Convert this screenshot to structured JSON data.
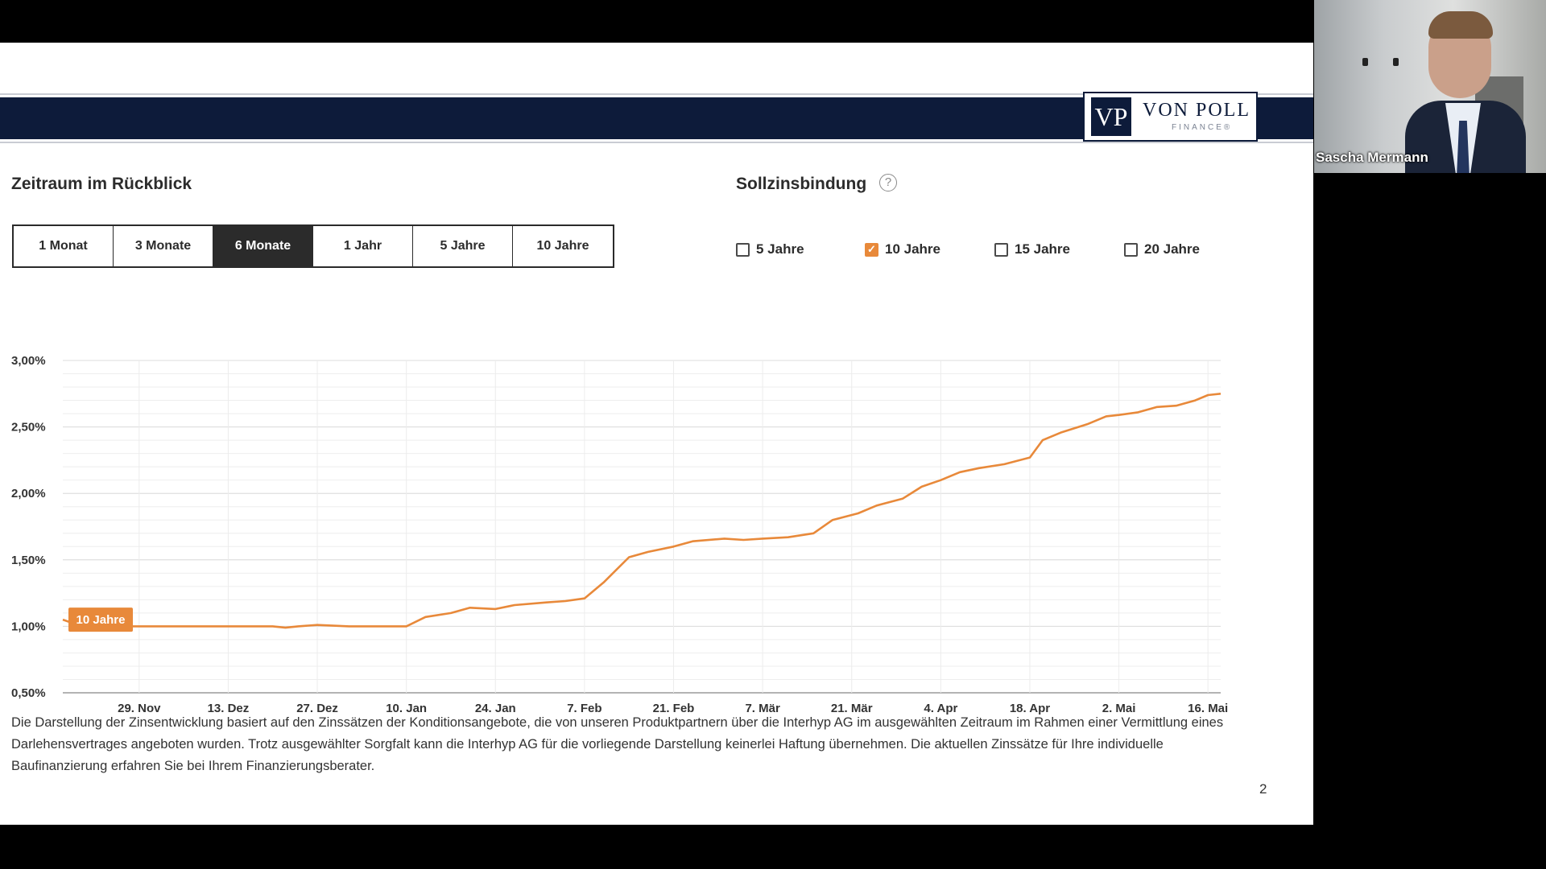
{
  "logo": {
    "mark": "VP",
    "name": "VON POLL",
    "sub": "FINANCE®"
  },
  "headings": {
    "period": "Zeitraum im Rückblick",
    "fixation": "Sollzinsbindung"
  },
  "help_icon": "?",
  "periods": [
    {
      "label": "1 Monat",
      "active": false
    },
    {
      "label": "3 Monate",
      "active": false
    },
    {
      "label": "6 Monate",
      "active": true
    },
    {
      "label": "1 Jahr",
      "active": false
    },
    {
      "label": "5 Jahre",
      "active": false
    },
    {
      "label": "10 Jahre",
      "active": false
    }
  ],
  "fixation_options": [
    {
      "label": "5 Jahre",
      "checked": false
    },
    {
      "label": "10 Jahre",
      "checked": true
    },
    {
      "label": "15 Jahre",
      "checked": false
    },
    {
      "label": "20 Jahre",
      "checked": false
    }
  ],
  "colors": {
    "accent": "#e8893a",
    "navy": "#0d1b3a"
  },
  "chart_data": {
    "type": "line",
    "ytick_labels": [
      "3,00%",
      "2,50%",
      "2,00%",
      "1,50%",
      "1,00%",
      "0,50%"
    ],
    "yticks": [
      3.0,
      2.5,
      2.0,
      1.5,
      1.0,
      0.5
    ],
    "ylim": [
      0.5,
      3.0
    ],
    "xtick_labels": [
      "29. Nov",
      "13. Dez",
      "27. Dez",
      "10. Jan",
      "24. Jan",
      "7. Feb",
      "21. Feb",
      "7. Mär",
      "21. Mär",
      "4. Apr",
      "18. Apr",
      "2. Mai",
      "16. Mai"
    ],
    "grid": true,
    "series": [
      {
        "name": "10 Jahre",
        "color": "#e8893a",
        "x": [
          "2021-11-17",
          "2021-11-20",
          "2021-11-24",
          "2021-11-29",
          "2021-12-06",
          "2021-12-13",
          "2021-12-20",
          "2021-12-22",
          "2021-12-24",
          "2021-12-27",
          "2022-01-01",
          "2022-01-10",
          "2022-01-13",
          "2022-01-17",
          "2022-01-20",
          "2022-01-24",
          "2022-01-27",
          "2022-02-01",
          "2022-02-04",
          "2022-02-07",
          "2022-02-10",
          "2022-02-14",
          "2022-02-17",
          "2022-02-21",
          "2022-02-24",
          "2022-03-01",
          "2022-03-04",
          "2022-03-07",
          "2022-03-11",
          "2022-03-15",
          "2022-03-18",
          "2022-03-22",
          "2022-03-25",
          "2022-03-29",
          "2022-04-01",
          "2022-04-04",
          "2022-04-07",
          "2022-04-10",
          "2022-04-14",
          "2022-04-18",
          "2022-04-20",
          "2022-04-23",
          "2022-04-27",
          "2022-04-30",
          "2022-05-02",
          "2022-05-05",
          "2022-05-08",
          "2022-05-11",
          "2022-05-14",
          "2022-05-16",
          "2022-05-18"
        ],
        "values": [
          1.05,
          1.0,
          1.0,
          1.0,
          1.0,
          1.0,
          1.0,
          0.99,
          1.0,
          1.01,
          1.0,
          1.0,
          1.07,
          1.1,
          1.14,
          1.13,
          1.16,
          1.18,
          1.19,
          1.21,
          1.33,
          1.52,
          1.56,
          1.6,
          1.64,
          1.66,
          1.65,
          1.66,
          1.67,
          1.7,
          1.8,
          1.85,
          1.91,
          1.96,
          2.05,
          2.1,
          2.16,
          2.19,
          2.22,
          2.27,
          2.4,
          2.46,
          2.52,
          2.58,
          2.59,
          2.61,
          2.65,
          2.66,
          2.7,
          2.74,
          2.75
        ]
      }
    ],
    "series_label": "10 Jahre"
  },
  "disclaimer": "Die Darstellung der Zinsentwicklung basiert auf den Zinssätzen der Konditionsangebote, die von unseren Produktpartnern über die Interhyp AG im ausgewählten Zeitraum im Rahmen einer Vermittlung eines Darlehensvertrages angeboten wurden. Trotz ausgewählter Sorgfalt kann die Interhyp AG für die vorliegende Darstellung keinerlei Haftung übernehmen. Die aktuellen Zinssätze für Ihre individuelle Baufinanzierung erfahren Sie bei Ihrem Finanzierungsberater.",
  "page_number": "2",
  "video": {
    "participant_name": "Sascha Mermann"
  }
}
